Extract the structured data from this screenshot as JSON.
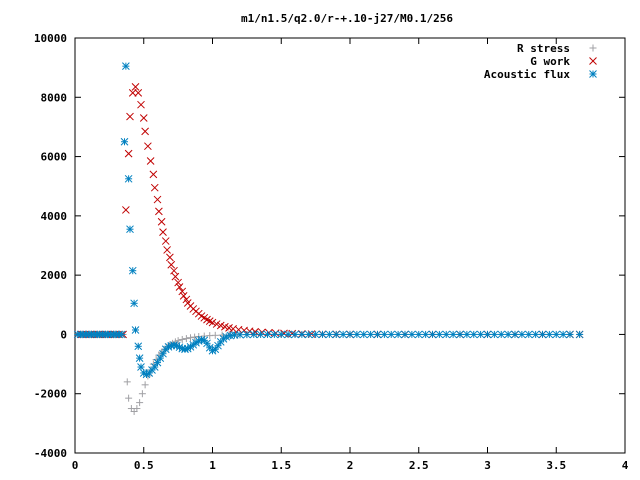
{
  "chart_data": {
    "type": "scatter",
    "title": "m1/n1.5/q2.0/r-+.10-j27/M0.1/256",
    "xlabel": "",
    "ylabel": "",
    "xlim": [
      0,
      4
    ],
    "ylim": [
      -4000,
      10000
    ],
    "xticks": [
      0,
      0.5,
      1,
      1.5,
      2,
      2.5,
      3,
      3.5,
      4
    ],
    "xtick_labels": [
      "0",
      "0.5",
      "1",
      "1.5",
      "2",
      "2.5",
      "3",
      "3.5",
      "4"
    ],
    "yticks": [
      -4000,
      -2000,
      0,
      2000,
      4000,
      6000,
      8000,
      10000
    ],
    "ytick_labels": [
      "-4000",
      "-2000",
      "0",
      "2000",
      "4000",
      "6000",
      "8000",
      "10000"
    ],
    "grid": false,
    "legend_position": "top-right",
    "series": [
      {
        "name": "R stress",
        "marker": "plus",
        "color": "#a0a0a4",
        "points": [
          [
            0.02,
            0
          ],
          [
            0.05,
            0
          ],
          [
            0.08,
            0
          ],
          [
            0.11,
            0
          ],
          [
            0.14,
            0
          ],
          [
            0.17,
            0
          ],
          [
            0.2,
            0
          ],
          [
            0.23,
            0
          ],
          [
            0.26,
            0
          ],
          [
            0.29,
            0
          ],
          [
            0.32,
            0
          ],
          [
            0.35,
            0
          ],
          [
            0.38,
            -1600
          ],
          [
            0.39,
            -2150
          ],
          [
            0.41,
            -2500
          ],
          [
            0.43,
            -2600
          ],
          [
            0.45,
            -2500
          ],
          [
            0.47,
            -2300
          ],
          [
            0.49,
            -2000
          ],
          [
            0.51,
            -1700
          ],
          [
            0.53,
            -1400
          ],
          [
            0.55,
            -1200
          ],
          [
            0.57,
            -1000
          ],
          [
            0.59,
            -850
          ],
          [
            0.61,
            -700
          ],
          [
            0.63,
            -600
          ],
          [
            0.65,
            -500
          ],
          [
            0.67,
            -420
          ],
          [
            0.69,
            -350
          ],
          [
            0.71,
            -300
          ],
          [
            0.73,
            -250
          ],
          [
            0.75,
            -210
          ],
          [
            0.78,
            -170
          ],
          [
            0.81,
            -140
          ],
          [
            0.84,
            -110
          ],
          [
            0.87,
            -90
          ],
          [
            0.9,
            -70
          ],
          [
            0.94,
            -55
          ],
          [
            0.98,
            -40
          ],
          [
            1.02,
            -30
          ],
          [
            1.07,
            -22
          ],
          [
            1.12,
            -15
          ],
          [
            1.18,
            -10
          ],
          [
            1.25,
            -6
          ],
          [
            1.32,
            -3
          ],
          [
            1.4,
            0
          ],
          [
            1.5,
            0
          ],
          [
            1.6,
            0
          ],
          [
            1.7,
            0
          ],
          [
            1.8,
            0
          ],
          [
            1.9,
            0
          ],
          [
            2.0,
            0
          ],
          [
            2.2,
            0
          ],
          [
            2.4,
            0
          ],
          [
            2.6,
            0
          ],
          [
            2.8,
            0
          ],
          [
            3.0,
            0
          ],
          [
            3.2,
            0
          ],
          [
            3.4,
            0
          ],
          [
            3.6,
            0
          ],
          [
            3.67,
            0
          ]
        ]
      },
      {
        "name": "G work",
        "marker": "cross",
        "color": "#c00000",
        "points": [
          [
            0.02,
            0
          ],
          [
            0.05,
            0
          ],
          [
            0.08,
            0
          ],
          [
            0.11,
            0
          ],
          [
            0.14,
            0
          ],
          [
            0.17,
            0
          ],
          [
            0.2,
            0
          ],
          [
            0.23,
            0
          ],
          [
            0.26,
            0
          ],
          [
            0.29,
            0
          ],
          [
            0.32,
            0
          ],
          [
            0.35,
            0
          ],
          [
            0.37,
            4200
          ],
          [
            0.39,
            6100
          ],
          [
            0.4,
            7350
          ],
          [
            0.42,
            8150
          ],
          [
            0.44,
            8350
          ],
          [
            0.46,
            8150
          ],
          [
            0.48,
            7750
          ],
          [
            0.5,
            7300
          ],
          [
            0.51,
            6850
          ],
          [
            0.53,
            6350
          ],
          [
            0.55,
            5850
          ],
          [
            0.57,
            5400
          ],
          [
            0.58,
            4950
          ],
          [
            0.6,
            4550
          ],
          [
            0.61,
            4150
          ],
          [
            0.63,
            3800
          ],
          [
            0.64,
            3450
          ],
          [
            0.66,
            3150
          ],
          [
            0.67,
            2850
          ],
          [
            0.69,
            2600
          ],
          [
            0.7,
            2350
          ],
          [
            0.72,
            2150
          ],
          [
            0.73,
            1950
          ],
          [
            0.75,
            1750
          ],
          [
            0.76,
            1600
          ],
          [
            0.78,
            1450
          ],
          [
            0.79,
            1300
          ],
          [
            0.81,
            1180
          ],
          [
            0.82,
            1060
          ],
          [
            0.84,
            960
          ],
          [
            0.86,
            860
          ],
          [
            0.88,
            780
          ],
          [
            0.9,
            700
          ],
          [
            0.92,
            620
          ],
          [
            0.94,
            560
          ],
          [
            0.96,
            500
          ],
          [
            0.98,
            450
          ],
          [
            1.0,
            400
          ],
          [
            1.03,
            350
          ],
          [
            1.06,
            300
          ],
          [
            1.09,
            260
          ],
          [
            1.12,
            220
          ],
          [
            1.15,
            190
          ],
          [
            1.19,
            160
          ],
          [
            1.23,
            135
          ],
          [
            1.27,
            110
          ],
          [
            1.31,
            90
          ],
          [
            1.36,
            72
          ],
          [
            1.41,
            58
          ],
          [
            1.46,
            45
          ],
          [
            1.52,
            35
          ],
          [
            1.58,
            26
          ],
          [
            1.65,
            18
          ],
          [
            1.72,
            12
          ],
          [
            1.8,
            8
          ],
          [
            1.9,
            5
          ],
          [
            2.0,
            3
          ],
          [
            2.2,
            1
          ],
          [
            2.4,
            0
          ],
          [
            2.6,
            0
          ],
          [
            2.8,
            0
          ],
          [
            3.0,
            0
          ],
          [
            3.2,
            0
          ],
          [
            3.4,
            0
          ],
          [
            3.6,
            0
          ],
          [
            3.67,
            0
          ]
        ]
      },
      {
        "name": "Acoustic flux",
        "marker": "star",
        "color": "#0080c0",
        "points": [
          [
            0.02,
            0
          ],
          [
            0.04,
            0
          ],
          [
            0.06,
            0
          ],
          [
            0.08,
            0
          ],
          [
            0.1,
            0
          ],
          [
            0.12,
            0
          ],
          [
            0.14,
            0
          ],
          [
            0.16,
            0
          ],
          [
            0.18,
            0
          ],
          [
            0.2,
            0
          ],
          [
            0.22,
            0
          ],
          [
            0.24,
            0
          ],
          [
            0.26,
            0
          ],
          [
            0.28,
            0
          ],
          [
            0.3,
            0
          ],
          [
            0.32,
            0
          ],
          [
            0.34,
            0
          ],
          [
            0.36,
            6500
          ],
          [
            0.37,
            9050
          ],
          [
            0.39,
            5250
          ],
          [
            0.4,
            3550
          ],
          [
            0.42,
            2150
          ],
          [
            0.43,
            1050
          ],
          [
            0.44,
            150
          ],
          [
            0.46,
            -400
          ],
          [
            0.47,
            -800
          ],
          [
            0.48,
            -1100
          ],
          [
            0.5,
            -1300
          ],
          [
            0.52,
            -1350
          ],
          [
            0.54,
            -1300
          ],
          [
            0.56,
            -1200
          ],
          [
            0.58,
            -1100
          ],
          [
            0.6,
            -950
          ],
          [
            0.62,
            -800
          ],
          [
            0.64,
            -650
          ],
          [
            0.66,
            -500
          ],
          [
            0.68,
            -420
          ],
          [
            0.7,
            -380
          ],
          [
            0.72,
            -360
          ],
          [
            0.74,
            -380
          ],
          [
            0.76,
            -430
          ],
          [
            0.78,
            -480
          ],
          [
            0.8,
            -500
          ],
          [
            0.82,
            -480
          ],
          [
            0.84,
            -420
          ],
          [
            0.86,
            -350
          ],
          [
            0.88,
            -280
          ],
          [
            0.9,
            -220
          ],
          [
            0.92,
            -180
          ],
          [
            0.94,
            -200
          ],
          [
            0.96,
            -300
          ],
          [
            0.98,
            -450
          ],
          [
            1.0,
            -550
          ],
          [
            1.02,
            -500
          ],
          [
            1.04,
            -380
          ],
          [
            1.06,
            -250
          ],
          [
            1.08,
            -150
          ],
          [
            1.1,
            -80
          ],
          [
            1.13,
            -40
          ],
          [
            1.16,
            -20
          ],
          [
            1.2,
            -10
          ],
          [
            1.25,
            -5
          ],
          [
            1.3,
            0
          ],
          [
            1.35,
            0
          ],
          [
            1.4,
            0
          ],
          [
            1.45,
            0
          ],
          [
            1.5,
            0
          ],
          [
            1.55,
            0
          ],
          [
            1.6,
            0
          ],
          [
            1.65,
            0
          ],
          [
            1.7,
            0
          ],
          [
            1.75,
            0
          ],
          [
            1.8,
            0
          ],
          [
            1.85,
            0
          ],
          [
            1.9,
            0
          ],
          [
            1.95,
            0
          ],
          [
            2.0,
            0
          ],
          [
            2.05,
            0
          ],
          [
            2.1,
            0
          ],
          [
            2.15,
            0
          ],
          [
            2.2,
            0
          ],
          [
            2.25,
            0
          ],
          [
            2.3,
            0
          ],
          [
            2.35,
            0
          ],
          [
            2.4,
            0
          ],
          [
            2.45,
            0
          ],
          [
            2.5,
            0
          ],
          [
            2.55,
            0
          ],
          [
            2.6,
            0
          ],
          [
            2.65,
            0
          ],
          [
            2.7,
            0
          ],
          [
            2.75,
            0
          ],
          [
            2.8,
            0
          ],
          [
            2.85,
            0
          ],
          [
            2.9,
            0
          ],
          [
            2.95,
            0
          ],
          [
            3.0,
            0
          ],
          [
            3.05,
            0
          ],
          [
            3.1,
            0
          ],
          [
            3.15,
            0
          ],
          [
            3.2,
            0
          ],
          [
            3.25,
            0
          ],
          [
            3.3,
            0
          ],
          [
            3.35,
            0
          ],
          [
            3.4,
            0
          ],
          [
            3.45,
            0
          ],
          [
            3.5,
            0
          ],
          [
            3.55,
            0
          ],
          [
            3.6,
            0
          ],
          [
            3.67,
            0
          ]
        ]
      }
    ]
  }
}
